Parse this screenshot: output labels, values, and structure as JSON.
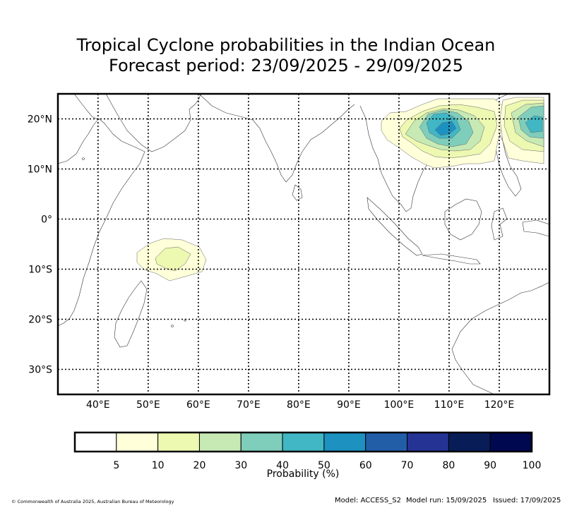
{
  "title": {
    "line1": "Tropical Cyclone probabilities in the Indian Ocean",
    "line2": "Forecast period: 23/09/2025 - 29/09/2025"
  },
  "map": {
    "lon_range": [
      32,
      130
    ],
    "lat_range": [
      -35,
      25
    ],
    "lon_ticks": [
      {
        "value": 40,
        "label": "40°E"
      },
      {
        "value": 50,
        "label": "50°E"
      },
      {
        "value": 60,
        "label": "60°E"
      },
      {
        "value": 70,
        "label": "70°E"
      },
      {
        "value": 80,
        "label": "80°E"
      },
      {
        "value": 90,
        "label": "90°E"
      },
      {
        "value": 100,
        "label": "100°E"
      },
      {
        "value": 110,
        "label": "110°E"
      },
      {
        "value": 120,
        "label": "120°E"
      }
    ],
    "lat_ticks": [
      {
        "value": 20,
        "label": "20°N"
      },
      {
        "value": 10,
        "label": "10°N"
      },
      {
        "value": 0,
        "label": "0°"
      },
      {
        "value": -10,
        "label": "10°S"
      },
      {
        "value": -20,
        "label": "20°S"
      },
      {
        "value": -30,
        "label": "30°S"
      }
    ],
    "grid": true,
    "probability_regions": [
      {
        "name": "south-indian-ocean",
        "levels": [
          5,
          10
        ]
      },
      {
        "name": "south-china-sea-west",
        "levels": [
          5,
          10,
          20,
          30,
          40,
          50
        ]
      },
      {
        "name": "philippine-sea",
        "levels": [
          5,
          10,
          20,
          30,
          40
        ]
      }
    ]
  },
  "colorbar": {
    "label": "Probability (%)",
    "ticks": [
      "5",
      "10",
      "20",
      "30",
      "40",
      "50",
      "60",
      "70",
      "80",
      "90",
      "100"
    ],
    "colors": [
      "#ffffff",
      "#ffffd9",
      "#edf8b1",
      "#c7e9b4",
      "#7fcdbb",
      "#41b6c4",
      "#1d91c0",
      "#225ea8",
      "#253494",
      "#081d58",
      "#000850"
    ]
  },
  "footer": {
    "copyright": "© Commonwealth of Australia 2025, Australian Bureau of Meteorology",
    "model": "Model: ACCESS_S2",
    "model_run": "Model run: 15/09/2025",
    "issued": "Issued: 17/09/2025"
  }
}
